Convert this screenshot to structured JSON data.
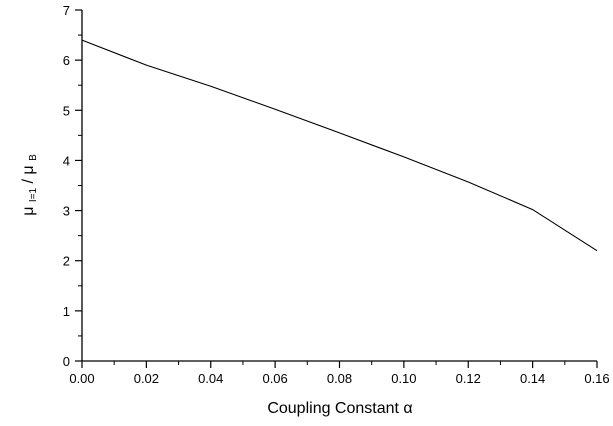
{
  "chart_data": {
    "type": "line",
    "xlabel": "Coupling Constant α",
    "ylabel": {
      "part1": "μ",
      "sub1": "I=1",
      "sep": " / ",
      "part2": "μ",
      "sub2": "B"
    },
    "xlim": [
      0.0,
      0.16
    ],
    "ylim": [
      0,
      7
    ],
    "x_ticks": [
      "0.00",
      "0.02",
      "0.04",
      "0.06",
      "0.08",
      "0.10",
      "0.12",
      "0.14",
      "0.16"
    ],
    "y_ticks": [
      "0",
      "1",
      "2",
      "3",
      "4",
      "5",
      "6",
      "7"
    ],
    "grid": false,
    "series": [
      {
        "x": [
          0.0,
          0.02,
          0.04,
          0.06,
          0.08,
          0.1,
          0.12,
          0.14,
          0.16
        ],
        "y": [
          6.4,
          5.9,
          5.48,
          5.02,
          4.55,
          4.07,
          3.57,
          3.02,
          2.2
        ]
      }
    ]
  }
}
